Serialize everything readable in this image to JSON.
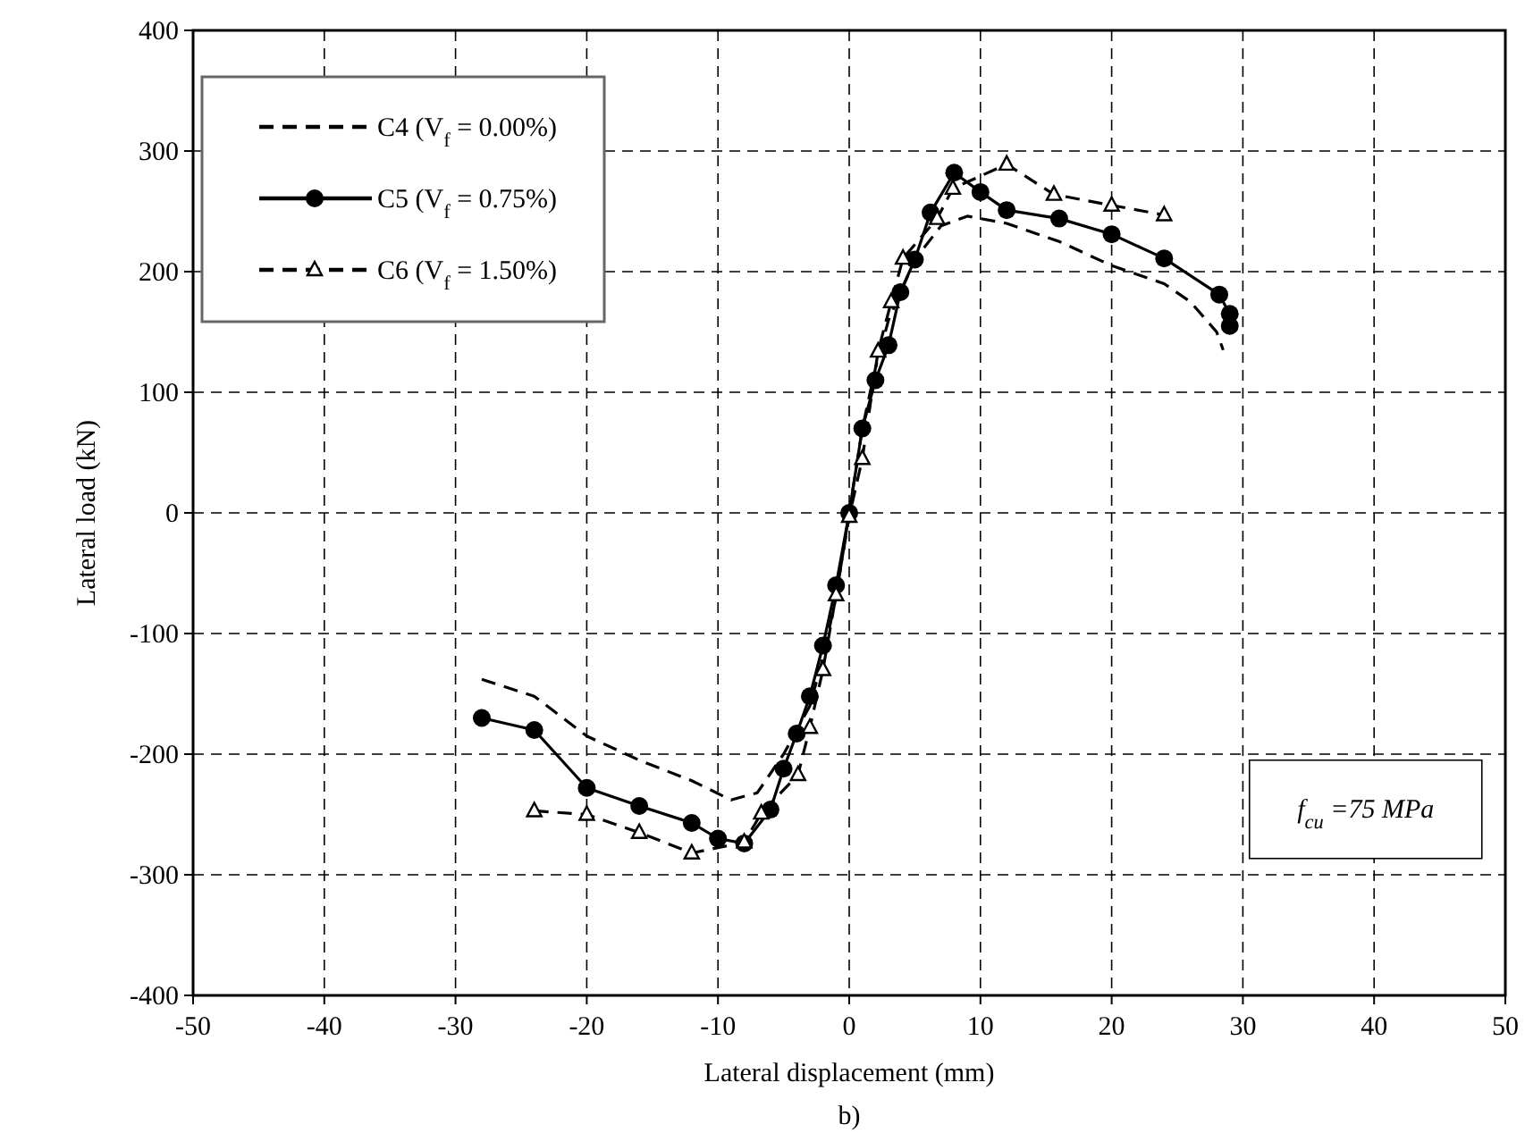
{
  "chart_data": {
    "type": "line",
    "xlabel": "Lateral displacement (mm)",
    "ylabel": "Lateral load (kN)",
    "xlim": [
      -50,
      50
    ],
    "xticks": [
      -50,
      -40,
      -30,
      -20,
      -10,
      0,
      10,
      20,
      30,
      40,
      50
    ],
    "ylim": [
      -400,
      400
    ],
    "yticks": [
      -400,
      -300,
      -200,
      -100,
      0,
      100,
      200,
      300,
      400
    ],
    "grid": true,
    "legend": "top left",
    "annotations": [
      "f$_{cu}$ =75 MPa",
      "b)"
    ],
    "series": [
      {
        "name": "C4 (V$_{f}$ = 0.00%)",
        "color": "#000000",
        "line_style": "dashed",
        "marker": "none",
        "x": [
          -28,
          -24,
          -20,
          -16,
          -12,
          -9,
          -7,
          -5,
          -3,
          -2,
          -1,
          0,
          1,
          2,
          3,
          5,
          7,
          9,
          12,
          16,
          20,
          24,
          26,
          28,
          28.5
        ],
        "values": [
          -138,
          -152,
          -185,
          -205,
          -222,
          -238,
          -232,
          -200,
          -160,
          -120,
          -70,
          0,
          70,
          120,
          160,
          210,
          238,
          246,
          240,
          225,
          205,
          190,
          175,
          150,
          135
        ]
      },
      {
        "name": "C5 (V$_{f}$ = 0.75%)",
        "color": "#000000",
        "line_style": "solid",
        "marker": "circle",
        "x": [
          -28,
          -24,
          -20,
          -16,
          -12,
          -10,
          -8,
          -6,
          -5,
          -4,
          -3,
          -2,
          -1,
          0,
          1,
          2,
          3,
          3.9,
          5,
          6.2,
          8,
          10,
          12,
          16,
          20,
          24,
          28.2,
          29,
          29
        ],
        "values": [
          -170,
          -180,
          -228,
          -243,
          -257,
          -270,
          -274,
          -246,
          -212,
          -183,
          -152,
          -110,
          -60,
          0,
          70,
          110,
          139,
          183,
          210,
          249,
          282,
          266,
          251,
          244,
          231,
          211,
          181,
          165,
          155
        ]
      },
      {
        "name": "C6 (V$_{f}$ = 1.50%)",
        "color": "#000000",
        "line_style": "dashed",
        "marker": "triangle",
        "x": [
          -24,
          -20,
          -16,
          -12,
          -8,
          -6.7,
          -3.9,
          -3,
          -2,
          -1,
          0,
          1,
          2.2,
          3.2,
          4.1,
          6.7,
          7.9,
          12,
          15.6,
          20,
          24
        ],
        "values": [
          -247,
          -250,
          -265,
          -282,
          -273,
          -249,
          -217,
          -178,
          -130,
          -68,
          -3,
          45,
          134,
          175,
          211,
          244,
          269,
          289,
          264,
          255,
          247
        ]
      }
    ]
  }
}
